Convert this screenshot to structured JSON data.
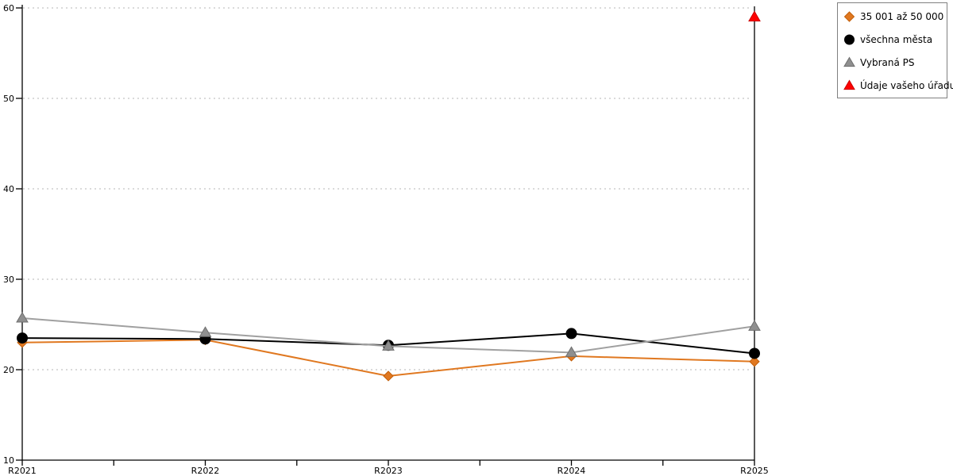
{
  "chart_data": {
    "type": "line",
    "title": "",
    "xlabel": "",
    "ylabel": "",
    "categories": [
      "R2021",
      "R2022",
      "R2023",
      "R2024",
      "R2025"
    ],
    "series": [
      {
        "name": "35 001 až 50 000",
        "marker": "diamond",
        "color": "#E07820",
        "marker_fill": "#E07820",
        "marker_stroke": "#C25F0A",
        "values": [
          23.0,
          23.3,
          19.3,
          21.5,
          20.9
        ]
      },
      {
        "name": "všechna města",
        "marker": "circle",
        "color": "#000000",
        "marker_fill": "#000000",
        "marker_stroke": "#000000",
        "values": [
          23.5,
          23.4,
          22.7,
          24.0,
          21.8
        ]
      },
      {
        "name": "Vybraná PS",
        "marker": "triangle",
        "color": "#A0A0A0",
        "marker_fill": "#8F8F8F",
        "marker_stroke": "#6F6F6F",
        "values": [
          25.7,
          24.1,
          22.6,
          21.9,
          24.8
        ]
      },
      {
        "name": "Údaje vašeho úřadu",
        "marker": "triangle",
        "color": "#FE0000",
        "marker_fill": "#FE0000",
        "marker_stroke": "#CC0000",
        "values": [
          null,
          null,
          null,
          null,
          59.0
        ]
      }
    ],
    "ylim": [
      10,
      60
    ],
    "y_ticks": [
      10,
      20,
      30,
      40,
      50,
      60
    ],
    "x_minor_ticks": true,
    "grid": "horizontal-dotted",
    "gridline_color": "#B4B4B4",
    "axis_color": "#000000",
    "background": "#FFFFFF",
    "legend_position": "top-right",
    "legend_border_color": "#808080"
  }
}
